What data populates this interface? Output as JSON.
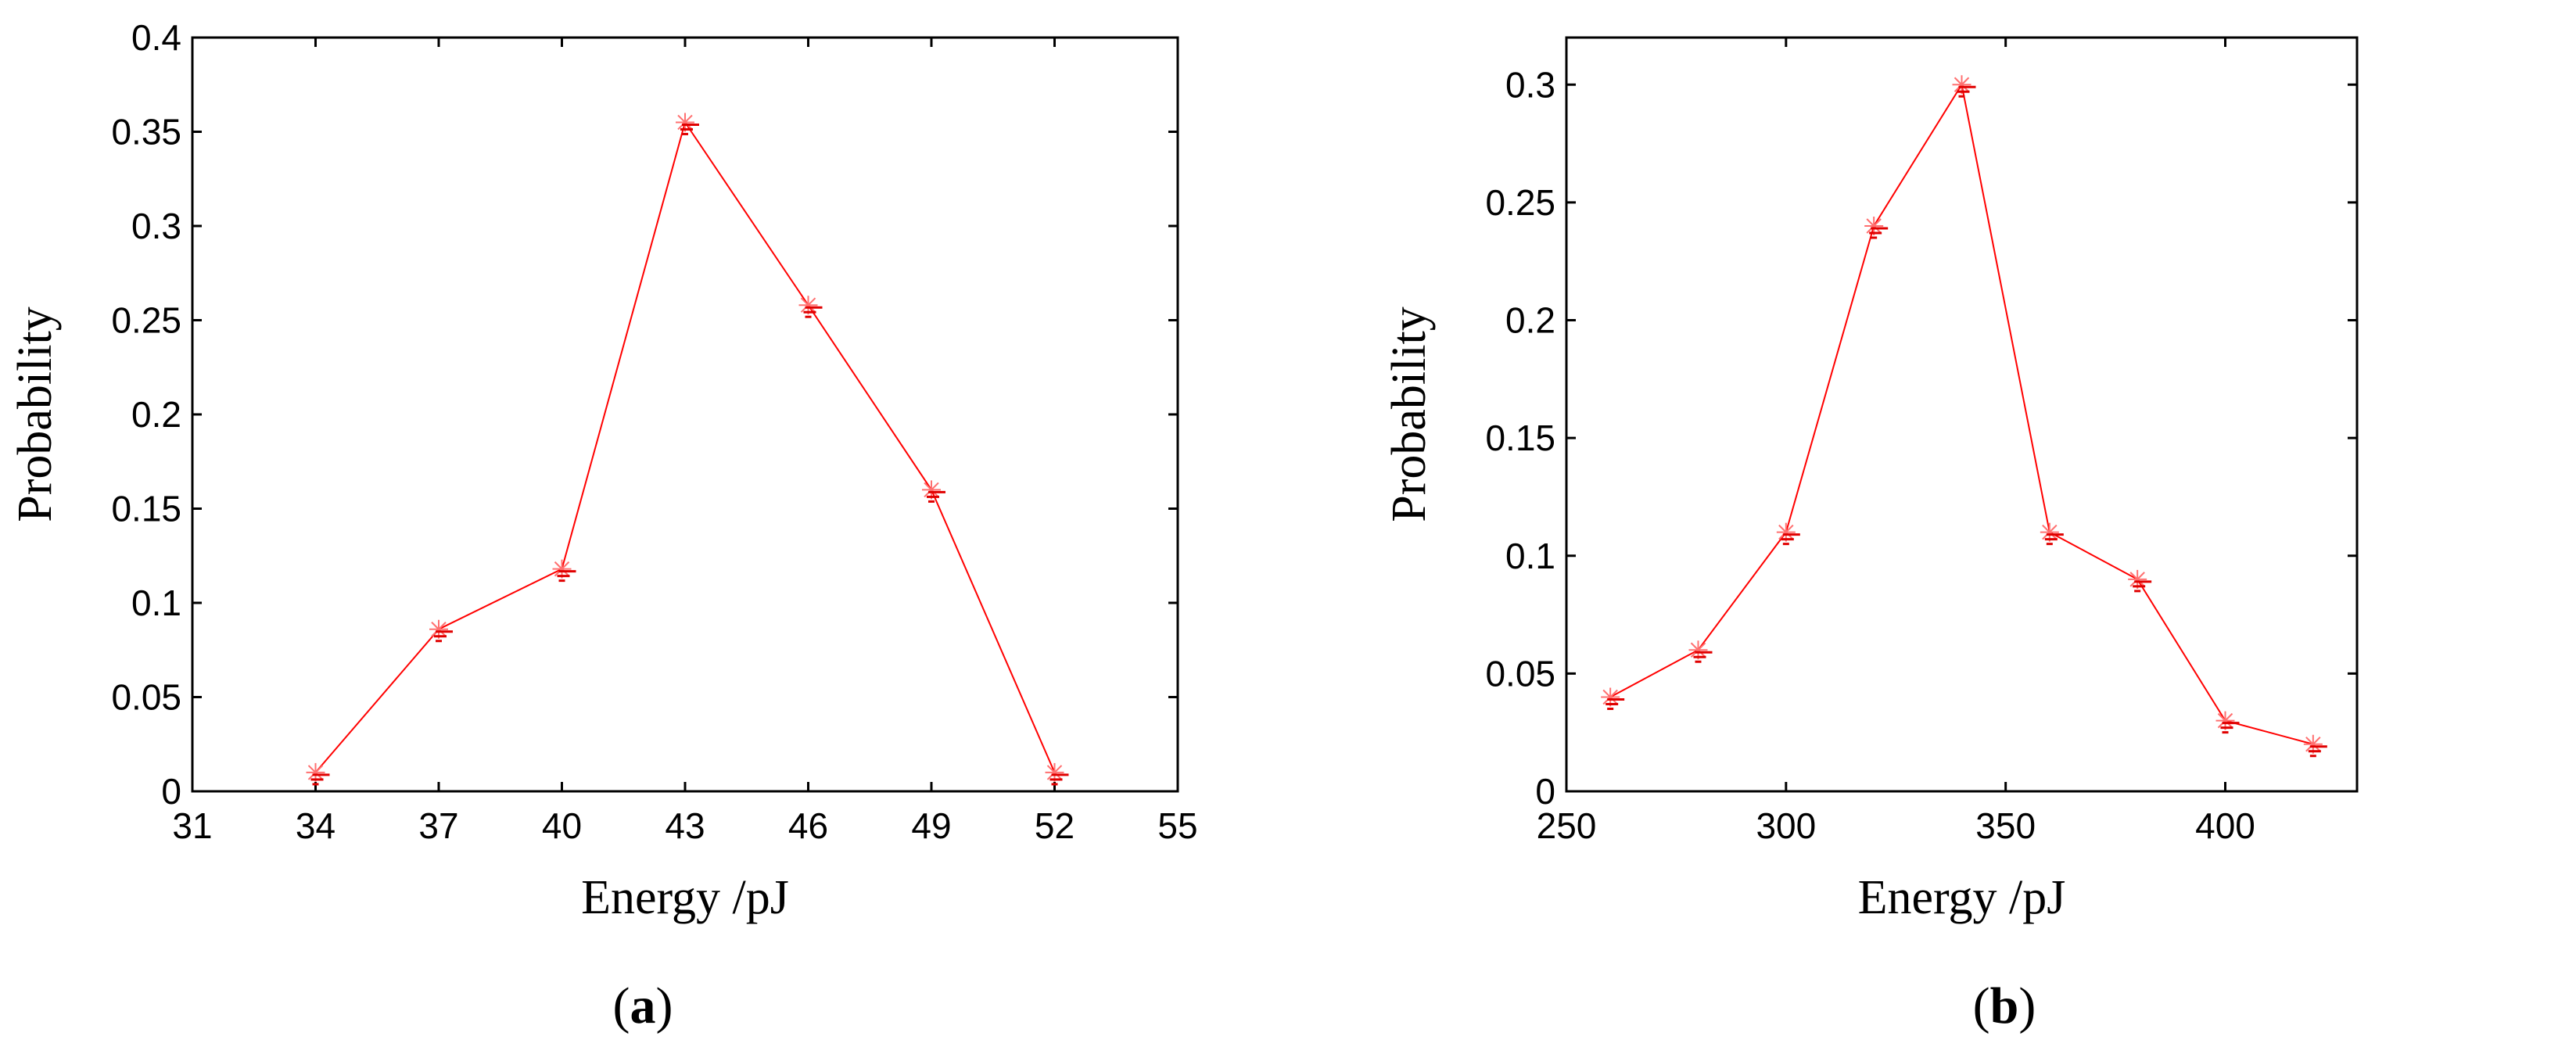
{
  "chart_data": [
    {
      "type": "line",
      "panel_label": "a",
      "title": "",
      "xlabel": "Energy /pJ",
      "ylabel": "Probability",
      "xlim": [
        31,
        55
      ],
      "ylim": [
        0,
        0.4
      ],
      "x_ticks": [
        "31",
        "34",
        "37",
        "40",
        "43",
        "46",
        "49",
        "52",
        "55"
      ],
      "y_ticks": [
        "0",
        "0.05",
        "0.1",
        "0.15",
        "0.2",
        "0.25",
        "0.3",
        "0.35",
        "0.4"
      ],
      "grid": false,
      "color": "#ff0000",
      "marker": "star",
      "series": [
        {
          "x": [
            34,
            37,
            40,
            43,
            46,
            49,
            52
          ],
          "values": [
            0.01,
            0.086,
            0.118,
            0.355,
            0.258,
            0.16,
            0.01
          ]
        }
      ]
    },
    {
      "type": "line",
      "panel_label": "b",
      "title": "",
      "xlabel": "Energy /pJ",
      "ylabel": "Probability",
      "xlim": [
        250,
        430
      ],
      "ylim": [
        0,
        0.32
      ],
      "x_ticks": [
        "250",
        "300",
        "350",
        "400"
      ],
      "y_ticks": [
        "0",
        "0.05",
        "0.1",
        "0.15",
        "0.2",
        "0.25",
        "0.3"
      ],
      "grid": false,
      "color": "#ff0000",
      "marker": "star",
      "series": [
        {
          "x": [
            260,
            280,
            300,
            320,
            340,
            360,
            380,
            400,
            420
          ],
          "values": [
            0.04,
            0.06,
            0.11,
            0.24,
            0.3,
            0.11,
            0.09,
            0.03,
            0.02
          ]
        }
      ]
    }
  ]
}
